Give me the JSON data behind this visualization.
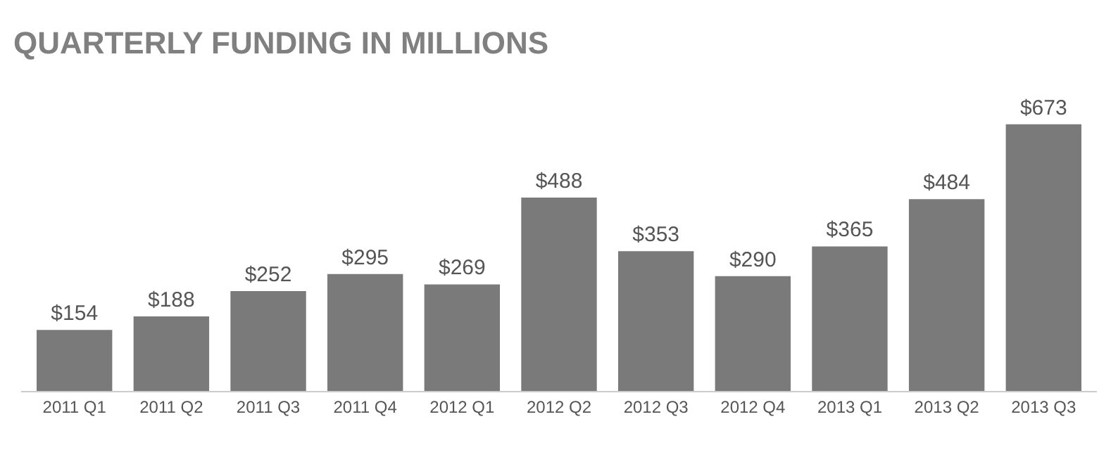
{
  "chart_data": {
    "type": "bar",
    "title": "QUARTERLY FUNDING IN MILLIONS",
    "categories": [
      "2011 Q1",
      "2011 Q2",
      "2011 Q3",
      "2011 Q4",
      "2012 Q1",
      "2012 Q2",
      "2012 Q3",
      "2012 Q4",
      "2013 Q1",
      "2013 Q2",
      "2013 Q3"
    ],
    "values": [
      154,
      188,
      252,
      295,
      269,
      488,
      353,
      290,
      365,
      484,
      673
    ],
    "value_labels": [
      "$154",
      "$188",
      "$252",
      "$295",
      "$269",
      "$488",
      "$353",
      "$290",
      "$365",
      "$484",
      "$673"
    ],
    "color": "#7a7a7a",
    "tick_labels": "x"
  }
}
